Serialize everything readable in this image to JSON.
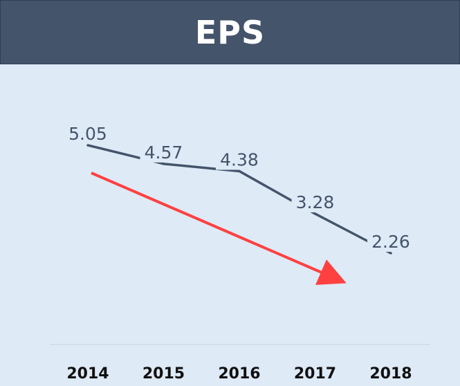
{
  "chart_data": {
    "type": "line",
    "title": "EPS",
    "categories": [
      "2014",
      "2015",
      "2016",
      "2017",
      "2018"
    ],
    "values": [
      5.05,
      4.57,
      4.38,
      3.28,
      2.26
    ],
    "data_labels": [
      "5.05",
      "4.57",
      "4.38",
      "3.28",
      "2.26"
    ],
    "xlabel": "",
    "ylabel": "",
    "grid": false,
    "legend": "none",
    "annotations": [
      {
        "type": "trend-arrow",
        "direction": "down",
        "color": "#ff4040"
      }
    ],
    "colors": {
      "line": "#44546a",
      "arrow": "#ff4040",
      "background": "#deeaf6",
      "header": "#44546a"
    }
  }
}
